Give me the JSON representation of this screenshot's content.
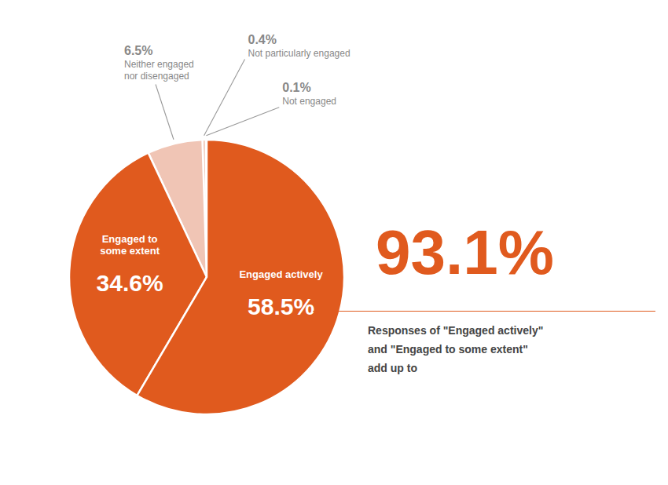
{
  "chart_data": {
    "type": "pie",
    "categories": [
      "Not engaged",
      "Not particularly engaged",
      "Neither engaged\nnor disengaged",
      "Engaged to\nsome extent",
      "Engaged actively"
    ],
    "values": [
      0.1,
      0.4,
      6.5,
      34.6,
      58.5
    ],
    "value_labels": [
      "0.1%",
      "0.4%",
      "6.5%",
      "34.6%",
      "58.5%"
    ],
    "colors": [
      "#F0C5B5",
      "#F0C5B5",
      "#F0C5B5",
      "#E05A1E",
      "#E05A1E"
    ],
    "annotations": [
      {
        "text": "93.1%",
        "color": "#E05A1E"
      },
      {
        "text": "Responses of \"Engaged actively\"",
        "color": "#444444"
      },
      {
        "text": "and \"Engaged to some extent\"",
        "color": "#444444"
      },
      {
        "text": "add up to",
        "color": "#444444"
      }
    ]
  }
}
